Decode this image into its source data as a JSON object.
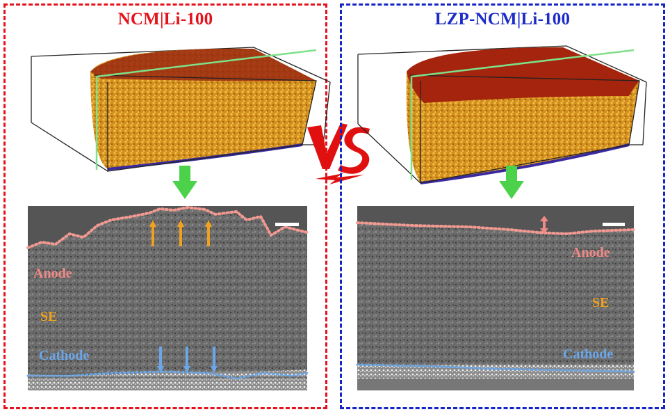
{
  "left_panel": {
    "title": "NCM|Li-100",
    "labels": {
      "anode": "Anode",
      "se": "SE",
      "cathode": "Cathode"
    }
  },
  "right_panel": {
    "title": "LZP-NCM|Li-100",
    "labels": {
      "anode": "Anode",
      "se": "SE",
      "cathode": "Cathode"
    }
  },
  "center_label": "VS",
  "colors": {
    "left_border": "#e5121b",
    "right_border": "#1524c4",
    "anode_label": "#f08a86",
    "se_label": "#f0a21f",
    "cathode_label": "#6aa6e8",
    "arrow_down": "#4cd24a",
    "vs": "#e01010"
  },
  "icons": {
    "down_arrow": "green-down-arrow-icon",
    "up_arrow": "orange-up-arrow-icon",
    "cathode_arrow": "blue-down-arrow-icon",
    "double_arrow": "pink-double-arrow-icon"
  }
}
